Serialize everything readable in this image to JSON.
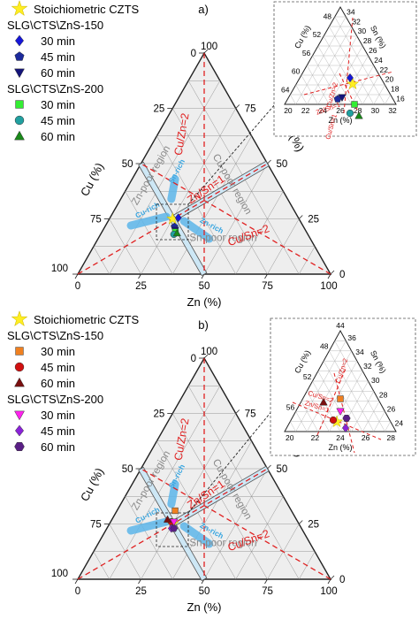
{
  "chart_data": [
    {
      "type": "scatter",
      "subtype": "ternary",
      "panel_label": "a)",
      "axes": {
        "bottom": {
          "label": "Zn (%)",
          "ticks": [
            "0",
            "25",
            "50",
            "75",
            "100"
          ]
        },
        "left": {
          "label": "Cu (%)",
          "ticks": [
            "100",
            "75",
            "50",
            "25",
            "0"
          ]
        },
        "right": {
          "label": "Sn (%)",
          "ticks": [
            "0",
            "25",
            "50",
            "75",
            "100"
          ]
        }
      },
      "ratio_lines": [
        "Cu/Zn=2",
        "Zn/Sn=1",
        "Cu/Sn=2"
      ],
      "regions": [
        "Zn-poor region",
        "Cu-poor region",
        "Sn-poor region",
        "Sn-rich",
        "Cu-rich",
        "Zn-rich"
      ],
      "legend": {
        "title_star": "Stoichiometric CZTS",
        "group1": "SLG\\CTS\\ZnS-150",
        "group2": "SLG\\CTS\\ZnS-200",
        "entries": [
          "30 min",
          "45 min",
          "60 min",
          "30 min",
          "45 min",
          "60 min"
        ]
      },
      "series": [
        {
          "name": "Stoichiometric CZTS",
          "marker": "star",
          "color": "#ffee22",
          "cu": 50,
          "zn": 25,
          "sn": 25
        },
        {
          "name": "SLG\\CTS\\ZnS-150 30 min",
          "marker": "diamond",
          "color": "#1616d8",
          "cu": 47.5,
          "zn": 27,
          "sn": 25.5
        },
        {
          "name": "SLG\\CTS\\ZnS-150 45 min",
          "marker": "pentagon",
          "color": "#1c2a9c",
          "cu": 51,
          "zn": 27.5,
          "sn": 21.5
        },
        {
          "name": "SLG\\CTS\\ZnS-150 60 min",
          "marker": "triangle-down",
          "color": "#14147a",
          "cu": 51.5,
          "zn": 28.5,
          "sn": 20
        },
        {
          "name": "SLG\\CTS\\ZnS-200 30 min",
          "marker": "square",
          "color": "#33ee33",
          "cu": 51.8,
          "zn": 29,
          "sn": 19.2
        },
        {
          "name": "SLG\\CTS\\ZnS-200 45 min",
          "marker": "circle",
          "color": "#21a0a0",
          "cu": 53,
          "zn": 29,
          "sn": 18
        },
        {
          "name": "SLG\\CTS\\ZnS-200 60 min",
          "marker": "triangle-up",
          "color": "#1a8a1a",
          "cu": 51.5,
          "zn": 30,
          "sn": 18.5
        }
      ],
      "inset": {
        "cu_ticks": [
          "48",
          "52",
          "56",
          "60",
          "64"
        ],
        "sn_ticks": [
          "34",
          "32",
          "30",
          "28",
          "26",
          "24",
          "22",
          "20",
          "18",
          "16"
        ],
        "zn_ticks": [
          "20",
          "22",
          "24",
          "26",
          "28",
          "30",
          "32"
        ],
        "cu_label": "Cu (%)",
        "sn_label": "Sn (%)",
        "zn_label": "Zn (%)",
        "line_labels": [
          "Cu/Zn=2",
          "Zn/Sn=1",
          "Cu/Sn=1"
        ]
      }
    },
    {
      "type": "scatter",
      "subtype": "ternary",
      "panel_label": "b)",
      "axes": {
        "bottom": {
          "label": "Zn (%)",
          "ticks": [
            "0",
            "25",
            "50",
            "75",
            "100"
          ]
        },
        "left": {
          "label": "Cu (%)",
          "ticks": [
            "100",
            "75",
            "50",
            "25",
            "0"
          ]
        },
        "right": {
          "label": "Sn (%)",
          "ticks": [
            "0",
            "25",
            "50",
            "75",
            "100"
          ]
        }
      },
      "ratio_lines": [
        "Cu/Zn=2",
        "Zn/Sn=1",
        "Cu/Sn=2"
      ],
      "regions": [
        "Zn-poor region",
        "Cu-poor region",
        "Sn-poor region",
        "Sn-rich",
        "Cu-rich",
        "Zn-rich"
      ],
      "legend": {
        "title_star": "Stoichiometric CZTS",
        "group1": "SLG\\CTS\\ZnS-150",
        "group2": "SLG\\CTS\\ZnS-200",
        "entries": [
          "30 min",
          "45 min",
          "60 min",
          "30 min",
          "45 min",
          "60 min"
        ]
      },
      "series": [
        {
          "name": "Stoichiometric CZTS",
          "marker": "star",
          "color": "#ffee22",
          "cu": 50,
          "zn": 25,
          "sn": 25
        },
        {
          "name": "SLG\\CTS\\ZnS-150 30 min",
          "marker": "square",
          "color": "#f08020",
          "cu": 46,
          "zn": 23,
          "sn": 31
        },
        {
          "name": "SLG\\CTS\\ZnS-150 45 min",
          "marker": "circle",
          "color": "#d11010",
          "cu": 50,
          "zn": 24,
          "sn": 26
        },
        {
          "name": "SLG\\CTS\\ZnS-150 60 min",
          "marker": "triangle-up",
          "color": "#7a0f0f",
          "cu": 51,
          "zn": 22,
          "sn": 27
        },
        {
          "name": "SLG\\CTS\\ZnS-200 30 min",
          "marker": "triangle-down",
          "color": "#ff22ee",
          "cu": 49,
          "zn": 25,
          "sn": 26
        },
        {
          "name": "SLG\\CTS\\ZnS-200 45 min",
          "marker": "diamond",
          "color": "#8a22d8",
          "cu": 51.5,
          "zn": 25.5,
          "sn": 23
        },
        {
          "name": "SLG\\CTS\\ZnS-200 60 min",
          "marker": "hexagon",
          "color": "#5a1f86",
          "cu": 50.5,
          "zn": 26.5,
          "sn": 23
        }
      ],
      "inset": {
        "cu_ticks": [
          "48",
          "52",
          "56"
        ],
        "sn_ticks": [
          "36",
          "34",
          "32",
          "30",
          "28",
          "26",
          "24"
        ],
        "zn_ticks": [
          "20",
          "22",
          "24",
          "26",
          "28"
        ],
        "top_tick": "44",
        "cu_label": "Cu (%)",
        "sn_label": "Sn (%)",
        "zn_label": "Zn (%)",
        "line_labels": [
          "Cu/Zn=2",
          "Zn/Sn=1",
          "Cu/Sn=2"
        ]
      }
    }
  ]
}
